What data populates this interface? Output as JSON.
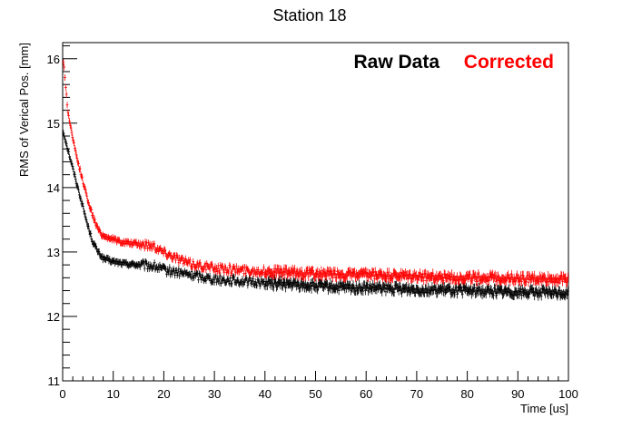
{
  "chart_data": {
    "type": "scatter",
    "title": "Station 18",
    "xlabel": "Time [us]",
    "ylabel": "RMS of Verical Pos. [mm]",
    "xlim": [
      0,
      100
    ],
    "ylim": [
      11,
      16.25
    ],
    "x_ticks": [
      "0",
      "10",
      "20",
      "30",
      "40",
      "50",
      "60",
      "70",
      "80",
      "90",
      "100"
    ],
    "y_ticks": [
      "11",
      "12",
      "13",
      "14",
      "15",
      "16"
    ],
    "grid": false,
    "legend_position": "top-right",
    "error_bars": true,
    "series": [
      {
        "name": "Raw Data",
        "color": "#000000",
        "x": [
          0.2,
          1,
          2,
          3,
          4,
          5,
          6,
          7,
          8,
          10,
          12,
          15,
          18,
          20,
          25,
          30,
          35,
          40,
          45,
          50,
          55,
          60,
          65,
          70,
          75,
          80,
          85,
          90,
          95,
          100
        ],
        "y": [
          14.85,
          14.6,
          14.3,
          14.0,
          13.7,
          13.4,
          13.15,
          13.0,
          12.9,
          12.85,
          12.82,
          12.8,
          12.78,
          12.72,
          12.65,
          12.58,
          12.55,
          12.52,
          12.5,
          12.47,
          12.45,
          12.44,
          12.43,
          12.42,
          12.41,
          12.4,
          12.39,
          12.38,
          12.37,
          12.36
        ]
      },
      {
        "name": "Corrected",
        "color": "#ff0000",
        "x": [
          0.2,
          1,
          2,
          3,
          4,
          5,
          6,
          7,
          8,
          10,
          12,
          15,
          18,
          20,
          25,
          30,
          35,
          40,
          45,
          50,
          55,
          60,
          65,
          70,
          75,
          80,
          85,
          90,
          95,
          100
        ],
        "y": [
          15.95,
          15.2,
          14.75,
          14.4,
          14.1,
          13.8,
          13.55,
          13.35,
          13.25,
          13.2,
          13.15,
          13.12,
          13.1,
          13.0,
          12.82,
          12.75,
          12.72,
          12.7,
          12.68,
          12.66,
          12.65,
          12.64,
          12.63,
          12.62,
          12.61,
          12.6,
          12.6,
          12.59,
          12.58,
          12.58
        ]
      }
    ]
  }
}
